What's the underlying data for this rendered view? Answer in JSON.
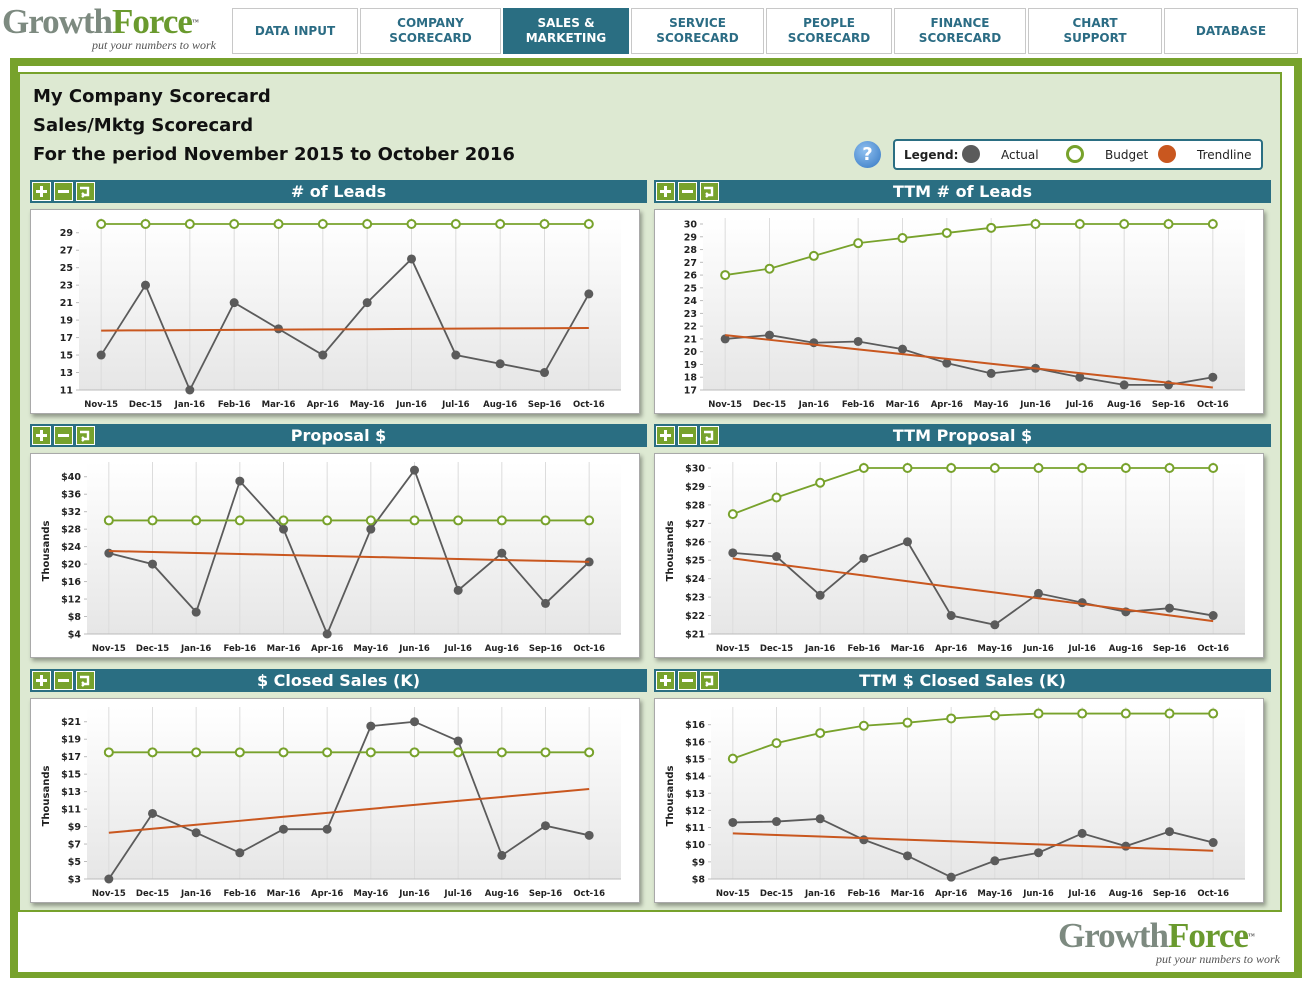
{
  "logo": {
    "word1": "Growth",
    "word2": "Force",
    "tm": "™",
    "tagline": "put your numbers to work"
  },
  "nav": [
    "DATA INPUT",
    "COMPANY SCORECARD",
    "SALES & MARKETING",
    "SERVICE SCORECARD",
    "PEOPLE SCORECARD",
    "FINANCE SCORECARD",
    "CHART SUPPORT",
    "DATABASE"
  ],
  "active_tab": 2,
  "header": {
    "company": "My Company Scorecard",
    "scorecard": "Sales/Mktg Scorecard",
    "period": "For the period November 2015 to October 2016"
  },
  "help": "?",
  "legend": {
    "label": "Legend:",
    "items": [
      {
        "name": "Actual",
        "color": "#5b5b5b",
        "marker": "filled"
      },
      {
        "name": "Budget",
        "color": "#78a22c",
        "marker": "hollow"
      },
      {
        "name": "Trendline",
        "color": "#c9571f",
        "marker": "line"
      }
    ]
  },
  "chart_data": [
    {
      "type": "line",
      "title": "# of Leads",
      "categories": [
        "Nov-15",
        "Dec-15",
        "Jan-16",
        "Feb-16",
        "Mar-16",
        "Apr-16",
        "May-16",
        "Jun-16",
        "Jul-16",
        "Aug-16",
        "Sep-16",
        "Oct-16"
      ],
      "ylim": [
        11,
        30
      ],
      "yticks": [
        11,
        13,
        15,
        17,
        19,
        21,
        23,
        25,
        27,
        29
      ],
      "series": [
        {
          "name": "Actual",
          "values": [
            15,
            23,
            11,
            21,
            18,
            15,
            21,
            26,
            15,
            14,
            13,
            22
          ]
        },
        {
          "name": "Budget",
          "values": [
            30,
            30,
            30,
            30,
            30,
            30,
            30,
            30,
            30,
            30,
            30,
            30
          ]
        },
        {
          "name": "Trendline",
          "values": [
            17.8,
            17.83,
            17.85,
            17.88,
            17.91,
            17.94,
            17.96,
            17.99,
            18.02,
            18.05,
            18.07,
            18.1
          ]
        }
      ]
    },
    {
      "type": "line",
      "title": "TTM # of Leads",
      "categories": [
        "Nov-15",
        "Dec-15",
        "Jan-16",
        "Feb-16",
        "Mar-16",
        "Apr-16",
        "May-16",
        "Jun-16",
        "Jul-16",
        "Aug-16",
        "Sep-16",
        "Oct-16"
      ],
      "ylim": [
        17,
        30
      ],
      "yticks": [
        17,
        18,
        19,
        20,
        21,
        22,
        23,
        24,
        25,
        26,
        27,
        28,
        29,
        30
      ],
      "series": [
        {
          "name": "Actual",
          "values": [
            21,
            21.3,
            20.7,
            20.8,
            20.2,
            19.1,
            18.3,
            18.7,
            18,
            17.4,
            17.4,
            18
          ]
        },
        {
          "name": "Budget",
          "values": [
            26,
            26.5,
            27.5,
            28.5,
            28.9,
            29.3,
            29.7,
            30,
            30,
            30,
            30,
            30
          ]
        },
        {
          "name": "Trendline",
          "values": [
            21.3,
            20.93,
            20.55,
            20.18,
            19.81,
            19.44,
            19.06,
            18.69,
            18.32,
            17.95,
            17.57,
            17.2
          ]
        }
      ]
    },
    {
      "type": "line",
      "title": "Proposal $",
      "ylabel": "Thousands",
      "categories": [
        "Nov-15",
        "Dec-15",
        "Jan-16",
        "Feb-16",
        "Mar-16",
        "Apr-16",
        "May-16",
        "Jun-16",
        "Jul-16",
        "Aug-16",
        "Sep-16",
        "Oct-16"
      ],
      "ylim": [
        4,
        42
      ],
      "yticks": [
        {
          "value": 4,
          "label": "$4"
        },
        {
          "value": 8,
          "label": "$8"
        },
        {
          "value": 12,
          "label": "$12"
        },
        {
          "value": 16,
          "label": "$16"
        },
        {
          "value": 20,
          "label": "$20"
        },
        {
          "value": 24,
          "label": "$24"
        },
        {
          "value": 28,
          "label": "$28"
        },
        {
          "value": 32,
          "label": "$32"
        },
        {
          "value": 36,
          "label": "$36"
        },
        {
          "value": 40,
          "label": "$40"
        }
      ],
      "series": [
        {
          "name": "Actual",
          "values": [
            22.5,
            20,
            9,
            39,
            28,
            4,
            28,
            41.5,
            14,
            22.5,
            11,
            20.5
          ]
        },
        {
          "name": "Budget",
          "values": [
            30,
            30,
            30,
            30,
            30,
            30,
            30,
            30,
            30,
            30,
            30,
            30
          ]
        },
        {
          "name": "Trendline",
          "values": [
            23,
            22.77,
            22.55,
            22.32,
            22.09,
            21.86,
            21.64,
            21.41,
            21.18,
            20.95,
            20.73,
            20.5
          ]
        }
      ]
    },
    {
      "type": "line",
      "title": "TTM Proposal $",
      "ylabel": "Thousands",
      "categories": [
        "Nov-15",
        "Dec-15",
        "Jan-16",
        "Feb-16",
        "Mar-16",
        "Apr-16",
        "May-16",
        "Jun-16",
        "Jul-16",
        "Aug-16",
        "Sep-16",
        "Oct-16"
      ],
      "ylim": [
        21,
        30
      ],
      "yticks": [
        {
          "value": 21,
          "label": "$21"
        },
        {
          "value": 22,
          "label": "$22"
        },
        {
          "value": 23,
          "label": "$23"
        },
        {
          "value": 24,
          "label": "$24"
        },
        {
          "value": 25,
          "label": "$25"
        },
        {
          "value": 26,
          "label": "$26"
        },
        {
          "value": 27,
          "label": "$27"
        },
        {
          "value": 28,
          "label": "$28"
        },
        {
          "value": 29,
          "label": "$29"
        },
        {
          "value": 30,
          "label": "$30"
        }
      ],
      "series": [
        {
          "name": "Actual",
          "values": [
            25.4,
            25.2,
            23.1,
            25.1,
            26,
            22,
            21.5,
            23.2,
            22.7,
            22.2,
            22.4,
            22
          ]
        },
        {
          "name": "Budget",
          "values": [
            27.5,
            28.4,
            29.2,
            30,
            30,
            30,
            30,
            30,
            30,
            30,
            30,
            30
          ]
        },
        {
          "name": "Trendline",
          "values": [
            25.1,
            24.79,
            24.48,
            24.17,
            23.86,
            23.55,
            23.25,
            22.94,
            22.63,
            22.32,
            22.01,
            21.7
          ]
        }
      ]
    },
    {
      "type": "line",
      "title": "$ Closed Sales (K)",
      "ylabel": "Thousands",
      "categories": [
        "Nov-15",
        "Dec-15",
        "Jan-16",
        "Feb-16",
        "Mar-16",
        "Apr-16",
        "May-16",
        "Jun-16",
        "Jul-16",
        "Aug-16",
        "Sep-16",
        "Oct-16"
      ],
      "ylim": [
        3,
        22
      ],
      "yticks": [
        {
          "value": 3,
          "label": "$3"
        },
        {
          "value": 5,
          "label": "$5"
        },
        {
          "value": 7,
          "label": "$7"
        },
        {
          "value": 9,
          "label": "$9"
        },
        {
          "value": 11,
          "label": "$11"
        },
        {
          "value": 13,
          "label": "$13"
        },
        {
          "value": 15,
          "label": "$15"
        },
        {
          "value": 17,
          "label": "$17"
        },
        {
          "value": 19,
          "label": "$19"
        },
        {
          "value": 21,
          "label": "$21"
        }
      ],
      "series": [
        {
          "name": "Actual",
          "values": [
            3,
            10.5,
            8.3,
            6,
            8.7,
            8.7,
            20.5,
            21,
            18.8,
            5.7,
            9.1,
            8
          ]
        },
        {
          "name": "Budget",
          "values": [
            17.5,
            17.5,
            17.5,
            17.5,
            17.5,
            17.5,
            17.5,
            17.5,
            17.5,
            17.5,
            17.5,
            17.5
          ]
        },
        {
          "name": "Trendline",
          "values": [
            8.3,
            8.75,
            9.21,
            9.66,
            10.12,
            10.57,
            11.03,
            11.48,
            11.94,
            12.39,
            12.85,
            13.3
          ]
        }
      ]
    },
    {
      "type": "line",
      "title": "TTM $ Closed Sales (K)",
      "ylabel": "Thousands",
      "categories": [
        "Nov-15",
        "Dec-15",
        "Jan-16",
        "Feb-16",
        "Mar-16",
        "Apr-16",
        "May-16",
        "Jun-16",
        "Jul-16",
        "Aug-16",
        "Sep-16",
        "Oct-16"
      ],
      "ylim": [
        8,
        17.1
      ],
      "yticks": [
        {
          "value": 8,
          "label": "$8"
        },
        {
          "value": 8.94,
          "label": "$9"
        },
        {
          "value": 9.88,
          "label": "$10"
        },
        {
          "value": 10.82,
          "label": "$11"
        },
        {
          "value": 11.76,
          "label": "$12"
        },
        {
          "value": 12.7,
          "label": "$13"
        },
        {
          "value": 13.64,
          "label": "$14"
        },
        {
          "value": 14.58,
          "label": "$15"
        },
        {
          "value": 15.52,
          "label": "$16"
        },
        {
          "value": 16.46,
          "label": "$16"
        }
      ],
      "series": [
        {
          "name": "Actual",
          "values": [
            11.1,
            11.15,
            11.3,
            10.15,
            9.27,
            8.1,
            9,
            9.44,
            10.5,
            9.8,
            10.6,
            10
          ]
        },
        {
          "name": "Budget",
          "values": [
            14.6,
            15.45,
            16,
            16.4,
            16.57,
            16.8,
            16.96,
            17.07,
            17.07,
            17.07,
            17.07,
            17.07
          ]
        },
        {
          "name": "Trendline",
          "values": [
            10.5,
            10.41,
            10.33,
            10.24,
            10.15,
            10.07,
            9.98,
            9.9,
            9.81,
            9.72,
            9.64,
            9.55
          ]
        }
      ]
    }
  ]
}
